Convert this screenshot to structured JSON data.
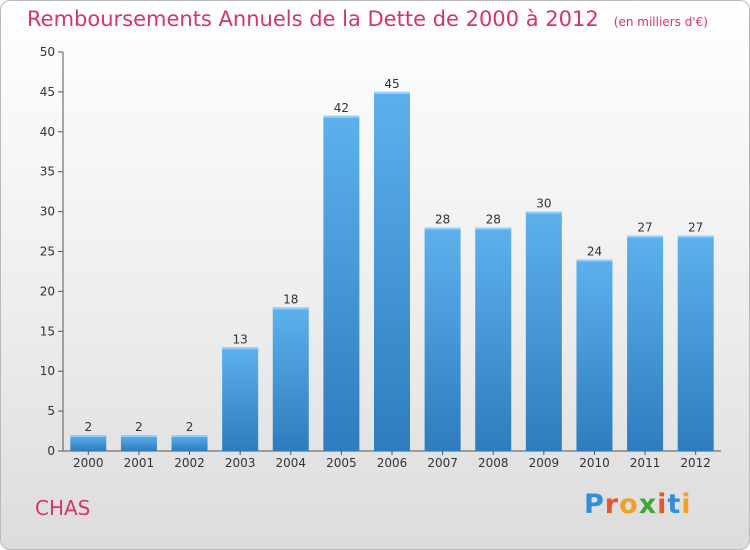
{
  "header": {
    "title": "Remboursements Annuels de la Dette de 2000 à 2012",
    "subtitle": "(en milliers d'€)"
  },
  "footer": {
    "commune": "CHAS",
    "brand": "Proxiti"
  },
  "colors": {
    "title": "#d8336a",
    "bar_top": "#5cb1ec",
    "bar_bottom": "#2e7cbe"
  },
  "chart_data": {
    "type": "bar",
    "title": "Remboursements Annuels de la Dette de 2000 à 2012",
    "xlabel": "",
    "ylabel": "",
    "categories": [
      "2000",
      "2001",
      "2002",
      "2003",
      "2004",
      "2005",
      "2006",
      "2007",
      "2008",
      "2009",
      "2010",
      "2011",
      "2012"
    ],
    "values": [
      2,
      2,
      2,
      13,
      18,
      42,
      45,
      28,
      28,
      30,
      24,
      27,
      27
    ],
    "ylim": [
      0,
      50
    ],
    "yticks": [
      0,
      5,
      10,
      15,
      20,
      25,
      30,
      35,
      40,
      45,
      50
    ],
    "grid": false
  }
}
